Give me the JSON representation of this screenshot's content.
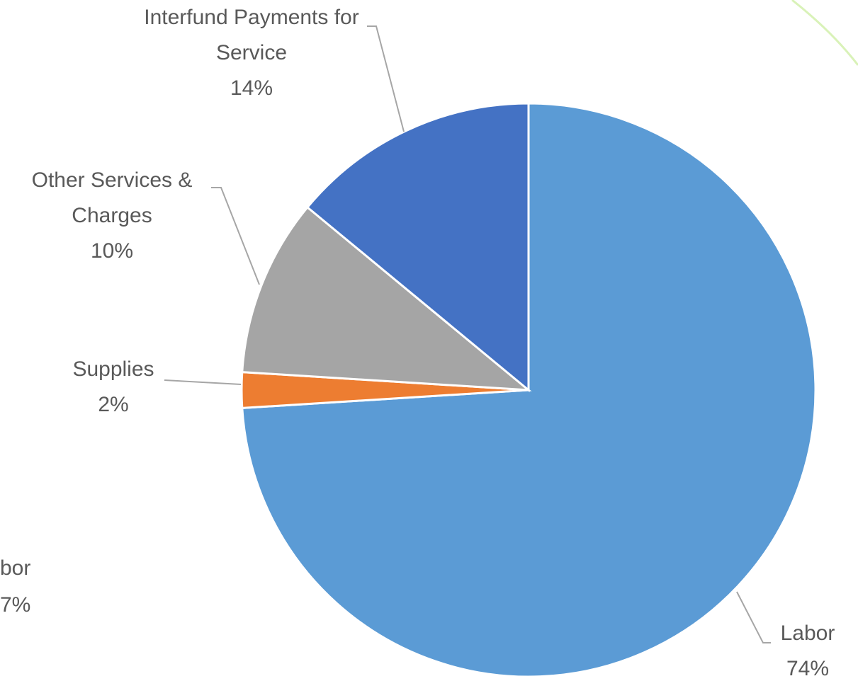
{
  "chart_data": {
    "type": "pie",
    "categories": [
      "Labor",
      "Supplies",
      "Other Services & Charges",
      "Interfund Payments for Service"
    ],
    "values": [
      74,
      2,
      10,
      14
    ],
    "value_labels": [
      "74%",
      "2%",
      "10%",
      "14%"
    ],
    "colors": [
      "#5b9bd5",
      "#ed7d31",
      "#a5a5a5",
      "#4472c4"
    ]
  },
  "clipped_texts": [
    "bor",
    "7%"
  ]
}
